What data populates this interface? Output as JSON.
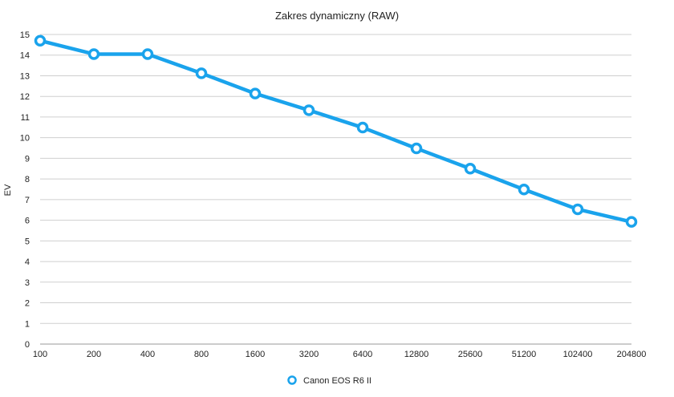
{
  "chart_data": {
    "type": "line",
    "title": "Zakres dynamiczny (RAW)",
    "xlabel": "",
    "ylabel": "EV",
    "categories": [
      "100",
      "200",
      "400",
      "800",
      "1600",
      "3200",
      "6400",
      "12800",
      "25600",
      "51200",
      "102400",
      "204800"
    ],
    "ylim": [
      0,
      15
    ],
    "yticks": [
      "0",
      "1",
      "2",
      "3",
      "4",
      "5",
      "6",
      "7",
      "8",
      "9",
      "10",
      "11",
      "12",
      "13",
      "14",
      "15"
    ],
    "grid": true,
    "legend_position": "bottom",
    "series": [
      {
        "name": "Canon EOS R6 II",
        "color": "#1aa3ec",
        "values": [
          14.7,
          14.05,
          14.05,
          13.12,
          12.14,
          11.33,
          10.49,
          9.48,
          8.5,
          7.49,
          6.53,
          5.92
        ]
      }
    ]
  }
}
